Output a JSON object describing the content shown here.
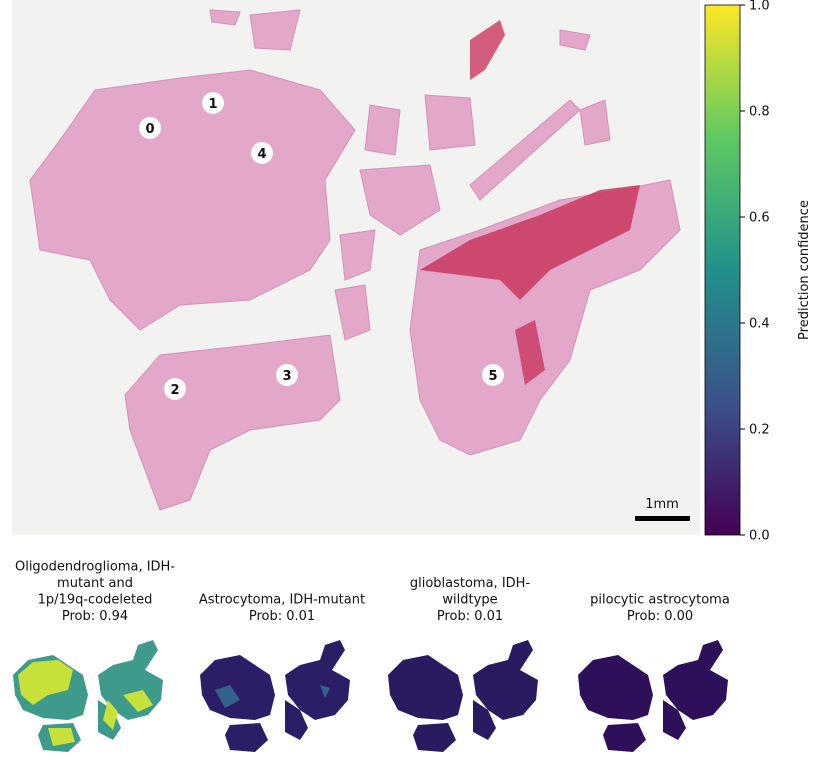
{
  "regions": [
    "0",
    "1",
    "2",
    "3",
    "4",
    "5"
  ],
  "scale_bar": "1mm",
  "colorbar": {
    "label": "Prediction confidence",
    "lim": [
      0,
      1
    ],
    "ticks": [
      {
        "value": 0,
        "label": "0.0"
      },
      {
        "value": 0.2,
        "label": "0.2"
      },
      {
        "value": 0.4,
        "label": "0.4"
      },
      {
        "value": 0.6,
        "label": "0.6"
      },
      {
        "value": 0.8,
        "label": "0.8"
      },
      {
        "value": 1,
        "label": "1.0"
      }
    ]
  },
  "panels": [
    {
      "title": [
        "Oligodendroglioma, IDH-",
        "mutant and",
        "1p/19q-codeleted"
      ],
      "prob": "Prob: 0.94"
    },
    {
      "title": [
        "Astrocytoma, IDH-mutant"
      ],
      "prob": "Prob: 0.01"
    },
    {
      "title": [
        "glioblastoma, IDH-",
        "wildtype"
      ],
      "prob": "Prob: 0.01"
    },
    {
      "title": [
        "pilocytic astrocytoma"
      ],
      "prob": "Prob: 0.00"
    }
  ]
}
